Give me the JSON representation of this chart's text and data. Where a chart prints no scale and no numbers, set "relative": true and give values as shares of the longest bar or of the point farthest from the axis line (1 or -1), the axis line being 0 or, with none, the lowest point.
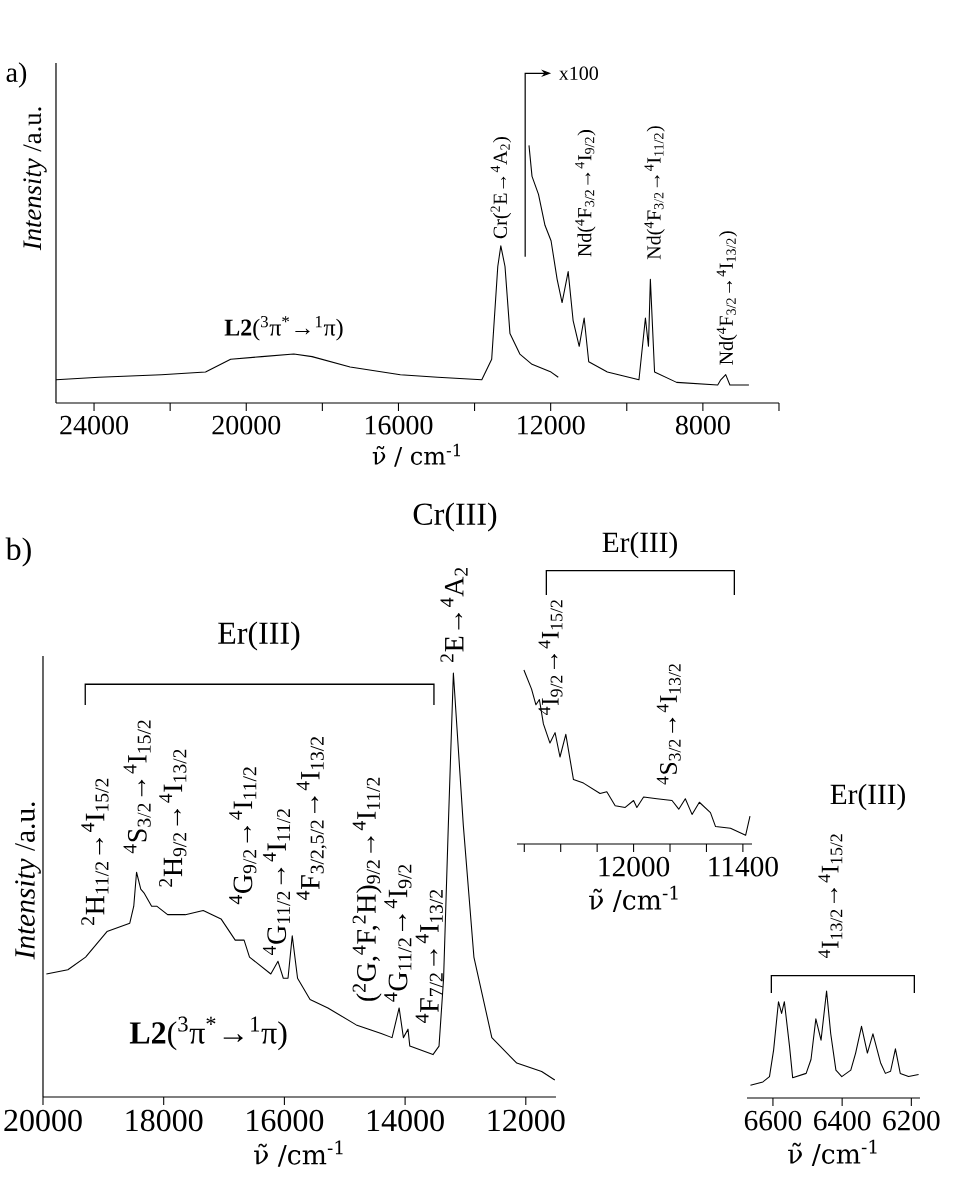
{
  "chart_data": [
    {
      "type": "line",
      "relative": true,
      "xlabel": "ν̃ / cm$^{-1}$",
      "ylabel": "*Intensity* /a.u.",
      "tick_labels": "x",
      "xlim": [
        25000,
        6000
      ],
      "xticks": [
        24000,
        {
          "value": 22000,
          "label": null
        },
        20000,
        {
          "value": 18000,
          "label": null
        },
        16000,
        {
          "value": 14000,
          "label": null
        },
        12000,
        {
          "value": 10000,
          "label": null
        },
        8000,
        {
          "value": 6000,
          "label": null
        }
      ],
      "series": [
        {
          "color": "#000000",
          "x": [
            25000,
            23870,
            22230,
            21070,
            20410,
            19590,
            18750,
            18270,
            17270,
            15950,
            14970,
            13810,
            13550,
            13390,
            13310,
            13200,
            13070,
            12810,
            12490,
            11990,
            11800
          ],
          "values": [
            0.09,
            0.1,
            0.11,
            0.12,
            0.17,
            0.18,
            0.19,
            0.18,
            0.14,
            0.11,
            0.1,
            0.09,
            0.17,
            0.53,
            0.61,
            0.53,
            0.27,
            0.19,
            0.15,
            0.12,
            0.1
          ]
        },
        {
          "color": "#000000",
          "x": [
            12570,
            12490,
            12320,
            12150,
            11990,
            11830,
            11700,
            11540,
            11410,
            11250,
            11120,
            11000,
            10510,
            9680,
            9510,
            9430,
            9380,
            9270,
            8690,
            7610,
            7530,
            7400,
            7290,
            6790
          ],
          "values": [
            1.0,
            0.88,
            0.81,
            0.69,
            0.63,
            0.48,
            0.39,
            0.51,
            0.32,
            0.22,
            0.33,
            0.16,
            0.12,
            0.09,
            0.33,
            0.22,
            0.48,
            0.12,
            0.08,
            0.07,
            0.09,
            0.11,
            0.07,
            0.07
          ]
        }
      ],
      "annotations": [
        "a)",
        "**L2**($^{3}$π$^{*}$→$^{1}$π)",
        "Cr($^{2}$E→$^{4}$A$_{2}$)",
        "x100",
        "Nd($^{4}$F$_{3/2}$→$^{4}$I$_{9/2}$)",
        "Nd($^{4}$F$_{3/2}$→$^{4}$I$_{11/2}$)",
        "Nd($^{4}$F$_{3/2}$→$^{4}$I$_{13/2}$)"
      ]
    },
    {
      "type": "line",
      "relative": true,
      "xlabel": "ν̃ /cm$^{-1}$",
      "ylabel": "*Intensity* /a.u.",
      "tick_labels": "x",
      "xlim": [
        20000,
        11500
      ],
      "xticks": [
        20000,
        18000,
        16000,
        14000,
        12000
      ],
      "series": [
        {
          "color": "#000000",
          "x": [
            19944,
            19588,
            19294,
            18940,
            18562,
            18496,
            18450,
            18380,
            18320,
            18200,
            18116,
            17935,
            17641,
            17345,
            17050,
            16815,
            16668,
            16578,
            16225,
            16106,
            16018,
            15940,
            15870,
            15782,
            15575,
            15279,
            14810,
            14396,
            14216,
            14099,
            14028,
            13952,
            13922,
            13538,
            13438,
            13362,
            13284,
            13200,
            13035,
            12860,
            12563,
            12150,
            11737,
            11520
          ],
          "values": [
            0.29,
            0.3,
            0.33,
            0.39,
            0.41,
            0.45,
            0.53,
            0.49,
            0.48,
            0.45,
            0.45,
            0.43,
            0.43,
            0.44,
            0.42,
            0.37,
            0.37,
            0.33,
            0.29,
            0.32,
            0.28,
            0.28,
            0.38,
            0.28,
            0.23,
            0.21,
            0.17,
            0.15,
            0.14,
            0.21,
            0.14,
            0.16,
            0.12,
            0.1,
            0.12,
            0.28,
            0.64,
            1.0,
            0.64,
            0.33,
            0.14,
            0.08,
            0.06,
            0.04
          ]
        }
      ],
      "annotations": [
        "b)",
        "Cr(III)",
        "$^{2}$E→$^{4}$A$_{2}$",
        "Er(III)",
        "$^{2}$H$_{11/2}$→$^{4}$I$_{15/2}$",
        "$^{4}$S$_{3/2}$→$^{4}$I$_{15/2}$",
        "$^{2}$H$_{9/2}$→$^{4}$I$_{13/2}$",
        "$^{4}$G$_{9/2}$→$^{4}$I$_{11/2}$",
        "$^{4}$G$_{11/2}$→$^{4}$I$_{11/2}$",
        "$^{4}$F$_{3/2,5/2}$→$^{4}$I$_{13/2}$",
        "($^{2}$G,$^{4}$F,$^{2}$H)$_{9/2}$→$^{4}$I$_{11/2}$",
        "$^{4}$G$_{11/2}$→$^{4}$I$_{9/2}$",
        "$^{4}$F$_{7/2}$→$^{4}$I$_{13/2}$",
        "**L2**($^{3}$π$^{*}$→$^{1}$π)"
      ]
    },
    {
      "type": "line",
      "relative": true,
      "xlabel": "ν̃ /cm$^{-1}$",
      "tick_labels": "x",
      "xlim": [
        12640,
        11350
      ],
      "xticks": [
        {
          "value": 12600,
          "label": null
        },
        {
          "value": 12400,
          "label": null
        },
        {
          "value": 12200,
          "label": null
        },
        12000,
        {
          "value": 11800,
          "label": null
        },
        {
          "value": 11600,
          "label": null
        },
        11400
      ],
      "series": [
        {
          "color": "#000000",
          "x": [
            12602,
            12560,
            12536,
            12517,
            12495,
            12459,
            12431,
            12404,
            12372,
            12330,
            12275,
            12184,
            12147,
            12101,
            12046,
            12000,
            11982,
            11945,
            11872,
            11789,
            11752,
            11716,
            11679,
            11639,
            11578,
            11550,
            11468,
            11385,
            11361
          ],
          "values": [
            1.0,
            0.89,
            0.8,
            0.83,
            0.69,
            0.58,
            0.64,
            0.5,
            0.63,
            0.37,
            0.35,
            0.29,
            0.3,
            0.22,
            0.21,
            0.25,
            0.21,
            0.27,
            0.26,
            0.25,
            0.2,
            0.26,
            0.17,
            0.24,
            0.18,
            0.1,
            0.09,
            0.05,
            0.16
          ]
        }
      ],
      "annotations": [
        "Er(III)",
        "$^{4}$I$_{9/2}$→$^{4}$I$_{15/2}$",
        "$^{4}$S$_{3/2}$→$^{4}$I$_{13/2}$"
      ]
    },
    {
      "type": "line",
      "relative": true,
      "xlabel": "ν̃ /cm$^{-1}$",
      "tick_labels": "x",
      "xlim": [
        6675,
        6175
      ],
      "xticks": [
        6600,
        6400,
        6200
      ],
      "series": [
        {
          "color": "#000000",
          "x": [
            6665,
            6629,
            6610,
            6598,
            6584,
            6575,
            6567,
            6552,
            6543,
            6504,
            6490,
            6476,
            6461,
            6445,
            6433,
            6418,
            6401,
            6375,
            6361,
            6344,
            6327,
            6311,
            6289,
            6275,
            6260,
            6246,
            6232,
            6208,
            6179
          ],
          "values": [
            0.12,
            0.15,
            0.2,
            0.45,
            0.9,
            0.79,
            0.9,
            0.48,
            0.19,
            0.23,
            0.36,
            0.74,
            0.54,
            1.0,
            0.6,
            0.26,
            0.2,
            0.26,
            0.42,
            0.67,
            0.42,
            0.6,
            0.33,
            0.23,
            0.25,
            0.46,
            0.23,
            0.2,
            0.22
          ]
        }
      ],
      "annotations": [
        "Er(III)",
        "$^{4}$I$_{13/2}$→$^{4}$I$_{15/2}$"
      ]
    }
  ]
}
